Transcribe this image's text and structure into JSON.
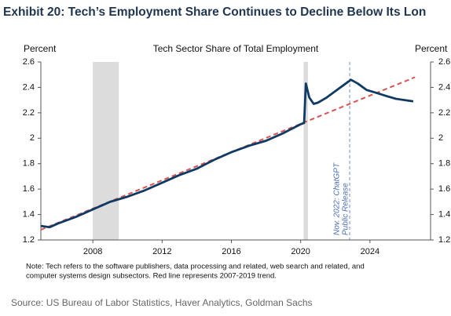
{
  "chart_data": {
    "type": "line",
    "title": "Exhibit 20: Tech’s Employment Share Continues to Decline Below Its Lon",
    "subtitle": "Tech Sector Share of Total Employment",
    "y_label": "Percent",
    "y2_label": "Percent",
    "note": [
      "Note: Tech refers to the software publishers, data processing and related, web search and related, and",
      "computer systems design subsectors. Red line represents 2007-2019 trend."
    ],
    "source": "Source: US Bureau of Labor Statistics, Haver Analytics, Goldman Sachs",
    "annotation": [
      "Nov. 2022: ChatGPT",
      "Public Release"
    ],
    "annotation_x": 2022.83,
    "shaded_ranges": [
      [
        2008.0,
        2009.5
      ],
      [
        2020.17,
        2020.42
      ]
    ],
    "xlim": [
      2005,
      2027.5
    ],
    "xticks": [
      2008,
      2012,
      2016,
      2020,
      2024
    ],
    "ylim": [
      1.2,
      2.6
    ],
    "yticks": [
      1.2,
      1.4,
      1.6,
      1.8,
      2.0,
      2.2,
      2.4,
      2.6
    ],
    "y2lim": [
      1.2,
      2.6
    ],
    "y2ticks": [
      1.2,
      1.4,
      1.6,
      1.8,
      2.0,
      2.2,
      2.4,
      2.6
    ],
    "series": [
      {
        "color": "#0f3a64",
        "style": "solid",
        "x": [
          2005,
          2005.5,
          2006,
          2007,
          2008,
          2009,
          2010,
          2011,
          2012,
          2013,
          2014,
          2015,
          2016,
          2017,
          2018,
          2019,
          2020.0,
          2020.2,
          2020.3,
          2020.5,
          2020.75,
          2021,
          2021.5,
          2022,
          2022.5,
          2022.9,
          2023.3,
          2023.8,
          2024.3,
          2025,
          2025.5,
          2026,
          2026.5
        ],
        "values": [
          1.31,
          1.3,
          1.33,
          1.38,
          1.44,
          1.5,
          1.54,
          1.59,
          1.65,
          1.71,
          1.76,
          1.83,
          1.89,
          1.94,
          1.98,
          2.04,
          2.11,
          2.12,
          2.43,
          2.32,
          2.27,
          2.28,
          2.32,
          2.37,
          2.42,
          2.46,
          2.43,
          2.38,
          2.36,
          2.33,
          2.31,
          2.3,
          2.29
        ]
      },
      {
        "color": "#d9534f",
        "style": "dashed",
        "x": [
          2005,
          2026.6
        ],
        "values": [
          1.28,
          2.48
        ]
      }
    ]
  }
}
